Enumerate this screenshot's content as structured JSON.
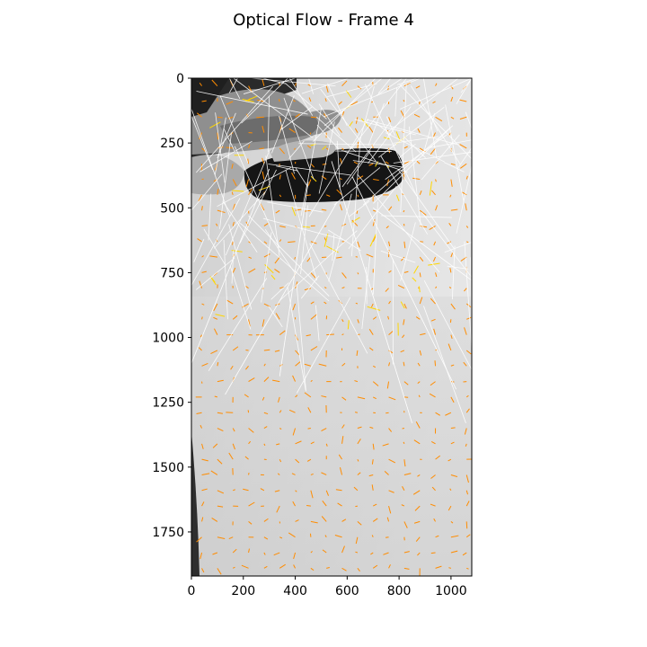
{
  "chart_data": {
    "type": "heatmap",
    "title": "Optical Flow - Frame 4",
    "xlabel": "",
    "ylabel": "",
    "xlim": [
      0,
      1080
    ],
    "ylim": [
      1920,
      0
    ],
    "x_ticks": [
      0,
      200,
      400,
      600,
      800,
      1000
    ],
    "y_ticks": [
      0,
      250,
      500,
      750,
      1000,
      1250,
      1500,
      1750
    ],
    "grid": false,
    "image": "grayscale photo frame: hand holding a dark cylindrical object near the top, light grey background",
    "overlays": [
      {
        "name": "flow vectors",
        "type": "quiver",
        "color": "#ff8c00",
        "grid_spacing": 60
      },
      {
        "name": "strong flow vectors",
        "type": "quiver",
        "color": "#ffd700"
      },
      {
        "name": "tracked feature lines",
        "type": "lines",
        "color": "#ffffff"
      }
    ],
    "colors": {
      "background": "#ffffff",
      "axis": "#000000",
      "vector": "#ff8c00",
      "strong_vector": "#ffd700",
      "track": "#ffffff"
    }
  }
}
